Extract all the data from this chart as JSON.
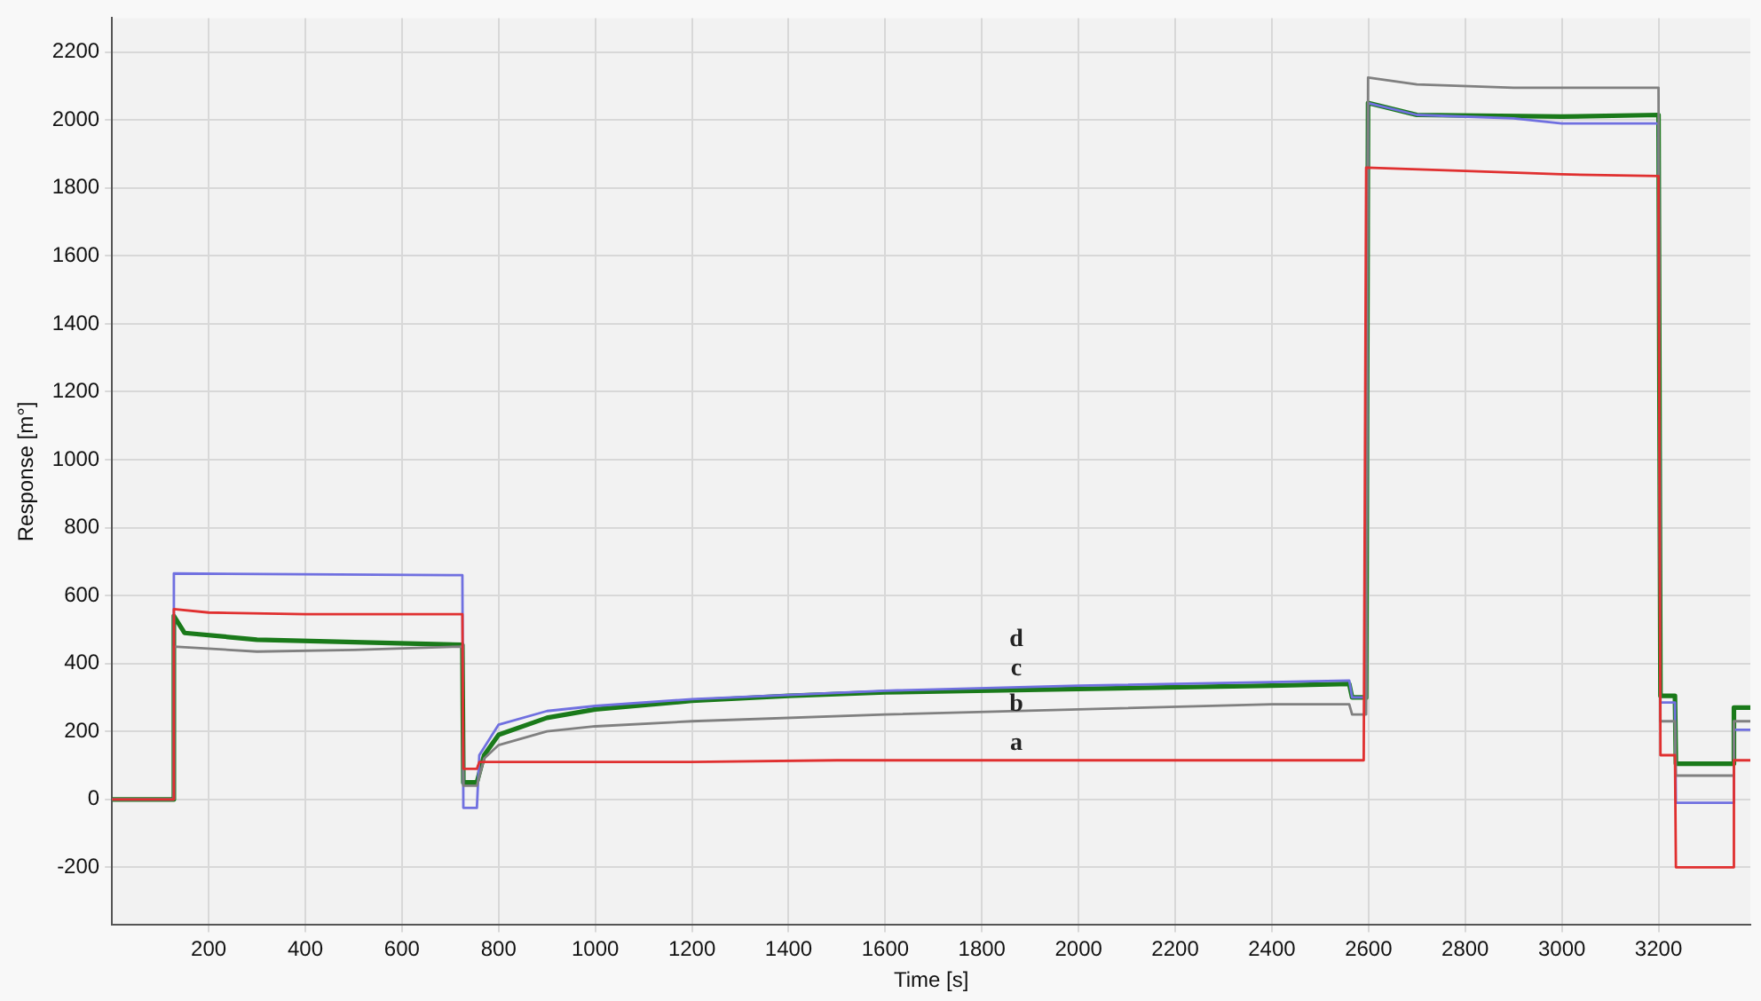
{
  "chart_data": {
    "type": "line",
    "xlabel": "Time [s]",
    "ylabel": "Response [m°]",
    "xlim": [
      0,
      3390
    ],
    "xticks": [
      200,
      400,
      600,
      800,
      1000,
      1200,
      1400,
      1600,
      1800,
      2000,
      2200,
      2400,
      2600,
      2800,
      3000,
      3200
    ],
    "ylim": [
      -370,
      2300
    ],
    "yticks": [
      -200,
      0,
      200,
      400,
      600,
      800,
      1000,
      1200,
      1400,
      1600,
      1800,
      2000,
      2200
    ],
    "grid": true,
    "legend": false,
    "marker": "none",
    "line_style": "solid",
    "series": [
      {
        "color": "#e03030",
        "x": [
          0,
          125,
          128,
          200,
          400,
          725,
          727,
          755,
          760,
          1200,
          1500,
          2590,
          2595,
          2800,
          3000,
          3200,
          3204,
          3234,
          3236,
          3354,
          3356,
          3390
        ],
        "values": [
          0,
          0,
          560,
          550,
          545,
          545,
          90,
          90,
          110,
          110,
          115,
          115,
          1860,
          1850,
          1840,
          1835,
          130,
          130,
          -200,
          -200,
          115,
          115
        ]
      },
      {
        "color": "#808080",
        "x": [
          0,
          125,
          128,
          300,
          500,
          725,
          727,
          755,
          770,
          800,
          900,
          1000,
          1200,
          1600,
          2000,
          2400,
          2560,
          2566,
          2595,
          2599,
          2700,
          2900,
          3200,
          3204,
          3234,
          3236,
          3354,
          3356,
          3390
        ],
        "values": [
          0,
          0,
          450,
          435,
          440,
          450,
          40,
          40,
          120,
          160,
          200,
          215,
          230,
          250,
          265,
          280,
          280,
          250,
          250,
          2125,
          2105,
          2095,
          2095,
          230,
          230,
          70,
          70,
          230,
          230
        ]
      },
      {
        "color": "#7070e0",
        "x": [
          0,
          125,
          128,
          700,
          725,
          727,
          755,
          760,
          800,
          900,
          1000,
          1200,
          1600,
          2000,
          2400,
          2560,
          2566,
          2595,
          2599,
          2700,
          2900,
          3000,
          3200,
          3204,
          3234,
          3236,
          3354,
          3356,
          3390
        ],
        "values": [
          0,
          0,
          665,
          660,
          660,
          -25,
          -25,
          130,
          220,
          260,
          275,
          295,
          320,
          335,
          345,
          350,
          300,
          300,
          2050,
          2015,
          2005,
          1990,
          1990,
          285,
          285,
          -10,
          -10,
          205,
          205
        ]
      },
      {
        "color": "#1a7a1a",
        "x": [
          0,
          125,
          128,
          150,
          300,
          725,
          727,
          755,
          770,
          800,
          900,
          1000,
          1200,
          1400,
          1600,
          2000,
          2400,
          2560,
          2566,
          2595,
          2599,
          2700,
          3000,
          3200,
          3204,
          3234,
          3236,
          3354,
          3356,
          3390
        ],
        "values": [
          0,
          0,
          540,
          490,
          470,
          455,
          50,
          50,
          130,
          190,
          240,
          265,
          290,
          305,
          315,
          325,
          335,
          340,
          300,
          300,
          2050,
          2015,
          2010,
          2015,
          305,
          305,
          105,
          105,
          270,
          270
        ]
      }
    ],
    "annotations": [
      "d",
      "c",
      "b",
      "a"
    ]
  }
}
